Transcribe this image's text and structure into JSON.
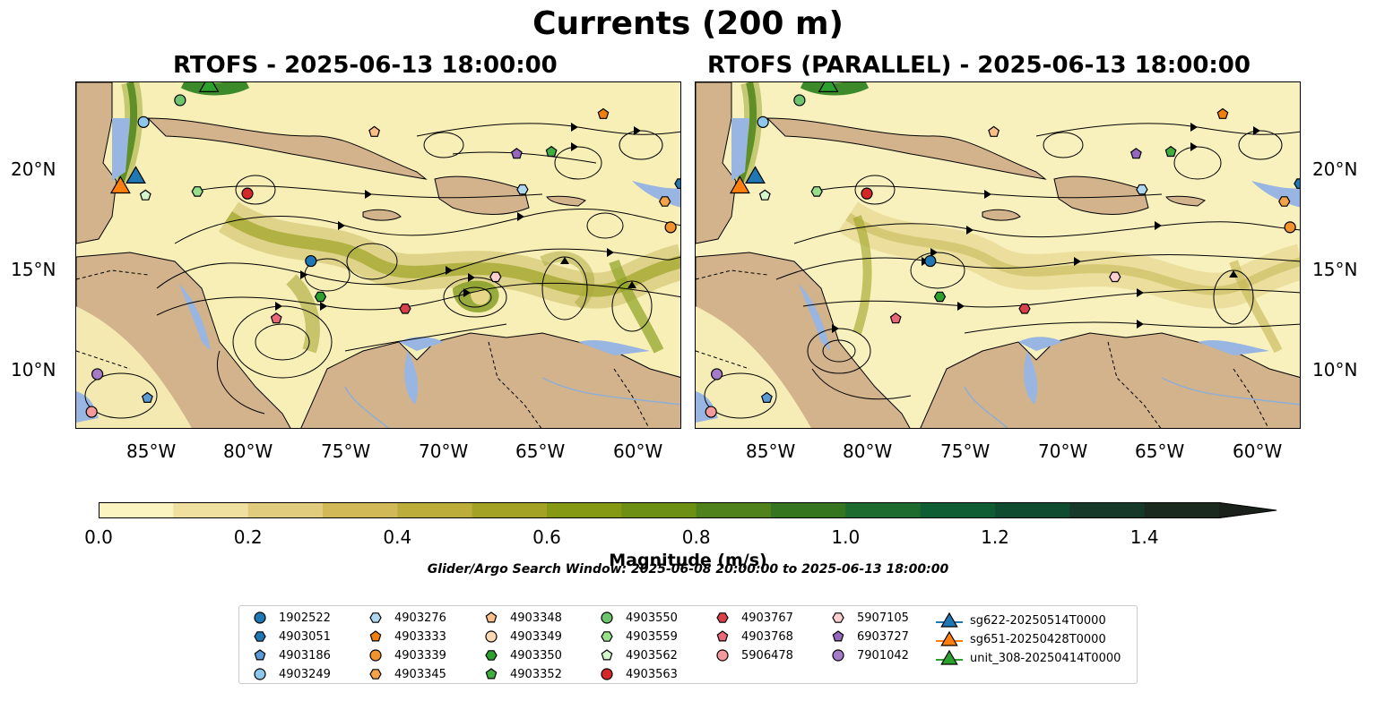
{
  "title": "Currents (200 m)",
  "panels": [
    {
      "title": "RTOFS - 2025-06-13 18:00:00"
    },
    {
      "title": "RTOFS (PARALLEL) - 2025-06-13 18:00:00"
    }
  ],
  "axes": {
    "lon_labels": [
      "85°W",
      "80°W",
      "75°W",
      "70°W",
      "65°W",
      "60°W"
    ],
    "lat_labels": [
      "20°N",
      "15°N",
      "10°N"
    ],
    "lon_range": [
      -89.5,
      -58.0
    ],
    "lat_range": [
      7.0,
      24.5
    ]
  },
  "colorbar": {
    "label": "Magnitude (m/s)",
    "ticks": [
      "0.0",
      "0.2",
      "0.4",
      "0.6",
      "0.8",
      "1.0",
      "1.2",
      "1.4"
    ],
    "range": [
      0.0,
      1.5
    ],
    "extend": "max",
    "colors": [
      "#fbf4c0",
      "#efe09f",
      "#e0cc7c",
      "#d0b956",
      "#bcad3a",
      "#a3a224",
      "#869914",
      "#6d8f14",
      "#4f821b",
      "#357520",
      "#1d6b2e",
      "#0f5e33",
      "#0f4b2e",
      "#16392a",
      "#1a2a1f",
      "#1a211a"
    ]
  },
  "search_window": "Glider/Argo Search Window: 2025-06-08 20:00:00 to 2025-06-13 18:00:00",
  "legend": {
    "columns": [
      [
        {
          "id": "1902522",
          "marker": "circle",
          "color": "#1f77b4"
        },
        {
          "id": "4903051",
          "marker": "hexagon",
          "color": "#1f77b4"
        },
        {
          "id": "4903186",
          "marker": "pentagon",
          "color": "#5b9bd5"
        },
        {
          "id": "4903249",
          "marker": "circle",
          "color": "#8ec7ec"
        }
      ],
      [
        {
          "id": "4903276",
          "marker": "hexagon",
          "color": "#aed8f2"
        },
        {
          "id": "4903333",
          "marker": "pentagon",
          "color": "#f07f0e"
        },
        {
          "id": "4903339",
          "marker": "circle",
          "color": "#f2932e"
        },
        {
          "id": "4903345",
          "marker": "hexagon",
          "color": "#f5a347"
        }
      ],
      [
        {
          "id": "4903348",
          "marker": "pentagon",
          "color": "#fbc089"
        },
        {
          "id": "4903349",
          "marker": "circle",
          "color": "#fcd9b4"
        },
        {
          "id": "4903350",
          "marker": "hexagon",
          "color": "#2ca02c"
        },
        {
          "id": "4903352",
          "marker": "pentagon",
          "color": "#3fae3f"
        }
      ],
      [
        {
          "id": "4903550",
          "marker": "circle",
          "color": "#6cc46c"
        },
        {
          "id": "4903559",
          "marker": "hexagon",
          "color": "#98df8a"
        },
        {
          "id": "4903562",
          "marker": "pentagon",
          "color": "#d5f5cc"
        },
        {
          "id": "4903563",
          "marker": "circle",
          "color": "#d62728"
        }
      ],
      [
        {
          "id": "4903767",
          "marker": "hexagon",
          "color": "#d9404a"
        },
        {
          "id": "4903768",
          "marker": "pentagon",
          "color": "#e8687a"
        },
        {
          "id": "5906478",
          "marker": "circle",
          "color": "#f49a9c"
        }
      ],
      [
        {
          "id": "5907105",
          "marker": "hexagon",
          "color": "#fcd0d1"
        },
        {
          "id": "6903727",
          "marker": "pentagon",
          "color": "#9467bd"
        },
        {
          "id": "7901042",
          "marker": "circle",
          "color": "#a57bc7"
        }
      ],
      [
        {
          "id": "sg622-20250514T0000",
          "marker": "triangle",
          "color": "#1f77b4"
        },
        {
          "id": "sg651-20250428T0000",
          "marker": "triangle",
          "color": "#ff7f0e"
        },
        {
          "id": "unit_308-20250414T0000",
          "marker": "triangle",
          "color": "#2ca02c"
        }
      ]
    ]
  },
  "floats": {
    "rtofs": [
      {
        "id": "4903339",
        "lon": -58.6,
        "lat": 17.2
      },
      {
        "id": "4903345",
        "lon": -58.9,
        "lat": 18.5
      },
      {
        "id": "1902522",
        "lon": -77.3,
        "lat": 15.5
      },
      {
        "id": "4903563",
        "lon": -80.6,
        "lat": 18.9
      },
      {
        "id": "4903350",
        "lon": -76.8,
        "lat": 13.7
      },
      {
        "id": "4903768",
        "lon": -79.1,
        "lat": 12.6
      },
      {
        "id": "4903767",
        "lon": -72.4,
        "lat": 13.1
      },
      {
        "id": "5907105",
        "lon": -67.7,
        "lat": 14.7
      },
      {
        "id": "4903276",
        "lon": -66.3,
        "lat": 19.1
      },
      {
        "id": "6903727",
        "lon": -66.6,
        "lat": 20.9
      },
      {
        "id": "4903352",
        "lon": -64.8,
        "lat": 21.0
      },
      {
        "id": "4903333",
        "lon": -62.1,
        "lat": 22.9
      },
      {
        "id": "4903348",
        "lon": -74.0,
        "lat": 22.0
      },
      {
        "id": "4903550",
        "lon": -84.1,
        "lat": 23.6
      },
      {
        "id": "4903249",
        "lon": -86.0,
        "lat": 22.5
      },
      {
        "id": "4903559",
        "lon": -83.2,
        "lat": 19.0
      },
      {
        "id": "4903562",
        "lon": -85.9,
        "lat": 18.8
      },
      {
        "id": "4903051",
        "lon": -58.1,
        "lat": 19.4
      },
      {
        "id": "7901042",
        "lon": -88.4,
        "lat": 9.8
      },
      {
        "id": "5906478",
        "lon": -88.7,
        "lat": 7.9
      },
      {
        "id": "4903186",
        "lon": -85.8,
        "lat": 8.6
      }
    ],
    "gliders": [
      {
        "id": "sg622-20250514T0000",
        "lon": -86.4,
        "lat": 19.7
      },
      {
        "id": "sg651-20250428T0000",
        "lon": -87.2,
        "lat": 19.2
      },
      {
        "id": "unit_308-20250414T0000",
        "lon": -82.6,
        "lat": 24.3
      }
    ]
  }
}
